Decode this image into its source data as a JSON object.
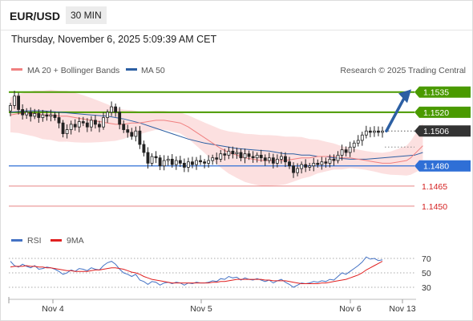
{
  "header": {
    "symbol": "EUR/USD",
    "timeframe": "30 MIN",
    "datetime": "Thursday, November 6, 2025 5:09:39 AM CET",
    "source": "Research © 2025 Trading Central"
  },
  "legend": {
    "ma20": "MA 20 + Bollinger Bands",
    "ma50": "MA 50",
    "rsi": "RSI",
    "rsi_ma": "9MA"
  },
  "colors": {
    "ma20": "#f08080",
    "ma50": "#2c5fa3",
    "bollinger_fill": "#fcdada",
    "resistance": "#4a9a00",
    "support": "#2f6fd6",
    "secondary_support": "#d42020",
    "price_tag": "#333333",
    "candle": "#222222",
    "rsi": "#4472c4",
    "rsi_ma": "#e02020",
    "arrow": "#2c5fa3"
  },
  "chart_data": {
    "type": "candlestick",
    "ylim": [
      1.1435,
      1.1545
    ],
    "levels": [
      {
        "value": 1.1535,
        "label": "1.1535",
        "type": "resistance"
      },
      {
        "value": 1.152,
        "label": "1.1520",
        "type": "resistance"
      },
      {
        "value": 1.1506,
        "label": "1.1506",
        "type": "last_price"
      },
      {
        "value": 1.148,
        "label": "1.1480",
        "type": "support"
      },
      {
        "value": 1.1465,
        "label": "1.1465",
        "type": "secondary_support"
      },
      {
        "value": 1.145,
        "label": "1.1450",
        "type": "secondary_support"
      }
    ],
    "x_labels": [
      "Nov 4",
      "Nov 5",
      "Nov 6",
      "Nov 13"
    ],
    "close": [
      1.1525,
      1.1532,
      1.1522,
      1.1518,
      1.152,
      1.1517,
      1.1519,
      1.1516,
      1.1518,
      1.1517,
      1.1518,
      1.1516,
      1.1512,
      1.1504,
      1.1507,
      1.1511,
      1.1509,
      1.1513,
      1.1512,
      1.1509,
      1.1514,
      1.1511,
      1.1509,
      1.1516,
      1.152,
      1.1524,
      1.152,
      1.1511,
      1.1507,
      1.1505,
      1.1502,
      1.1506,
      1.1496,
      1.149,
      1.1482,
      1.1487,
      1.1486,
      1.148,
      1.1484,
      1.1485,
      1.1481,
      1.1484,
      1.1482,
      1.1479,
      1.1483,
      1.1481,
      1.1484,
      1.1483,
      1.1482,
      1.1484,
      1.1486,
      1.1485,
      1.1489,
      1.1488,
      1.1491,
      1.1489,
      1.149,
      1.1486,
      1.1489,
      1.1487,
      1.1486,
      1.1488,
      1.1486,
      1.1484,
      1.1486,
      1.1482,
      1.1485,
      1.1487,
      1.1483,
      1.148,
      1.1475,
      1.1478,
      1.1481,
      1.1479,
      1.148,
      1.1482,
      1.1481,
      1.1483,
      1.1482,
      1.1485,
      1.1484,
      1.1488,
      1.1492,
      1.149,
      1.1494,
      1.1497,
      1.1499,
      1.1503,
      1.1506,
      1.1505,
      1.1506,
      1.1505,
      1.1506
    ],
    "ma20": [
      1.1518,
      1.1519,
      1.1519,
      1.1519,
      1.1518,
      1.1518,
      1.1517,
      1.1517,
      1.1516,
      1.1515,
      1.1514,
      1.1513,
      1.1512,
      1.1511,
      1.1511,
      1.1512,
      1.1512,
      1.1513,
      1.1514,
      1.1514,
      1.1513,
      1.1512,
      1.1509,
      1.1505,
      1.1501,
      1.1497,
      1.1493,
      1.149,
      1.1488,
      1.1486,
      1.1485,
      1.1484,
      1.1484,
      1.1484,
      1.1484,
      1.1485,
      1.1486,
      1.1486,
      1.1487,
      1.1487,
      1.1487,
      1.1486,
      1.1486,
      1.1485,
      1.1484,
      1.1483,
      1.1482,
      1.1482,
      1.1483,
      1.1484,
      1.1486,
      1.1489,
      1.1492,
      1.1495
    ],
    "ma20_x": [
      0,
      2,
      4,
      6,
      8,
      10,
      12,
      14,
      16,
      18,
      20,
      22,
      24,
      26,
      28,
      30,
      32,
      34,
      36,
      38,
      40,
      42,
      44,
      46,
      48,
      50,
      52,
      54,
      56,
      58,
      60,
      62,
      64,
      66,
      68,
      70,
      72,
      74,
      76,
      78,
      80,
      82,
      84,
      86,
      88,
      90,
      92,
      94,
      96,
      98,
      99,
      100,
      101,
      102
    ],
    "ma50": [
      1.152,
      1.1521,
      1.1521,
      1.152,
      1.1519,
      1.1518,
      1.1517,
      1.1515,
      1.1512,
      1.1508,
      1.1504,
      1.15,
      1.1497,
      1.1495,
      1.1493,
      1.1492,
      1.1491,
      1.149,
      1.1489,
      1.1489,
      1.1488,
      1.1488,
      1.1487,
      1.1487,
      1.1486,
      1.1485,
      1.1485,
      1.1486,
      1.1487,
      1.1488,
      1.1489,
      1.149
    ],
    "ma50_x": [
      0,
      4,
      8,
      12,
      16,
      20,
      24,
      28,
      32,
      36,
      40,
      44,
      48,
      52,
      56,
      60,
      64,
      66,
      68,
      70,
      72,
      74,
      76,
      78,
      80,
      84,
      88,
      92,
      96,
      100,
      101,
      102
    ],
    "rsi_ticks": [
      70,
      50,
      30
    ],
    "rsi_ylim": [
      20,
      80
    ],
    "rsi": [
      66,
      60,
      58,
      62,
      59,
      57,
      60,
      55,
      56,
      58,
      57,
      55,
      52,
      48,
      50,
      54,
      52,
      56,
      55,
      53,
      57,
      55,
      54,
      60,
      64,
      66,
      62,
      55,
      50,
      48,
      45,
      48,
      40,
      38,
      34,
      38,
      37,
      33,
      36,
      37,
      35,
      37,
      36,
      33,
      36,
      35,
      37,
      36,
      36,
      37,
      39,
      38,
      42,
      41,
      45,
      43,
      44,
      40,
      43,
      41,
      40,
      42,
      40,
      38,
      40,
      36,
      39,
      41,
      37,
      34,
      30,
      33,
      36,
      35,
      36,
      38,
      37,
      39,
      38,
      41,
      40,
      45,
      50,
      48,
      52,
      56,
      60,
      65,
      72,
      69,
      70,
      67,
      68
    ],
    "rsi_ma": [
      58,
      59,
      59,
      59,
      60,
      59,
      59,
      58,
      58,
      57,
      57,
      56,
      55,
      54,
      53,
      53,
      52,
      52,
      52,
      52,
      53,
      54,
      54,
      55,
      56,
      57,
      57,
      56,
      55,
      53,
      51,
      50,
      48,
      45,
      43,
      41,
      40,
      39,
      38,
      37,
      36,
      36,
      36,
      36,
      36,
      36,
      36,
      36,
      36,
      36,
      37,
      37,
      38,
      38,
      39,
      40,
      41,
      41,
      41,
      41,
      41,
      41,
      41,
      40,
      40,
      39,
      39,
      39,
      39,
      38,
      37,
      36,
      35,
      35,
      35,
      35,
      35,
      36,
      36,
      37,
      38,
      39,
      40,
      41,
      43,
      45,
      47,
      50,
      54,
      57,
      60,
      63,
      66
    ]
  }
}
